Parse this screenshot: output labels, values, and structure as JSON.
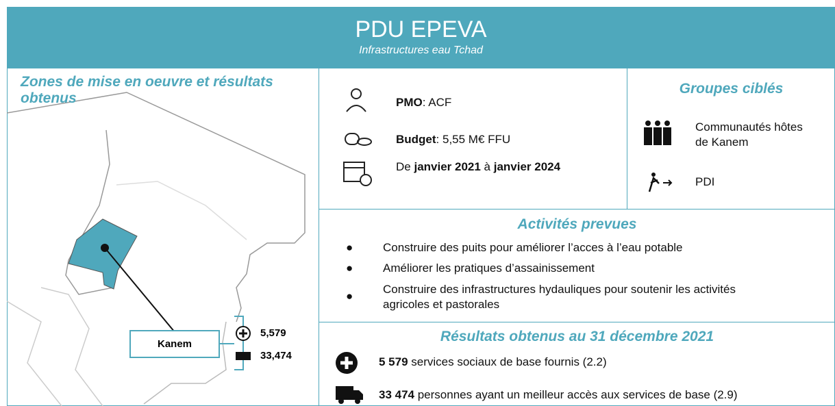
{
  "header": {
    "title": "PDU EPEVA",
    "subtitle": "Infrastructures eau Tchad"
  },
  "map": {
    "title": "Zones de mise en oeuvre et résultats obtenus",
    "region": "Kanem",
    "results": [
      "5,579",
      "33,474"
    ]
  },
  "info": {
    "pmo": {
      "label": "PMO",
      "text": ": ACF"
    },
    "budget": {
      "label": "Budget",
      "text": ": 5,55 M€ FFU"
    },
    "dates": [
      "De ",
      "janvier 2021",
      " à ",
      "janvier 2024"
    ]
  },
  "groups": {
    "title": "Groupes ciblés",
    "items": [
      "Communautés hôtes de Kanem",
      "PDI"
    ]
  },
  "activities": {
    "title": "Activités prevues",
    "items": [
      "Construire des puits pour améliorer l’acces à l’eau potable",
      "Améliorer les pratiques d’assainissement",
      "Construire des infrastructures hydauliques pour soutenir les activités agricoles et pastorales"
    ]
  },
  "results": {
    "title": "Résultats obtenus au 31 décembre 2021",
    "items": [
      {
        "number": "5 579",
        "text": " services sociaux de base fournis (2.2)"
      },
      {
        "number": "33 474",
        "text": " personnes ayant un meilleur accès aux services de base (2.9)"
      }
    ]
  }
}
